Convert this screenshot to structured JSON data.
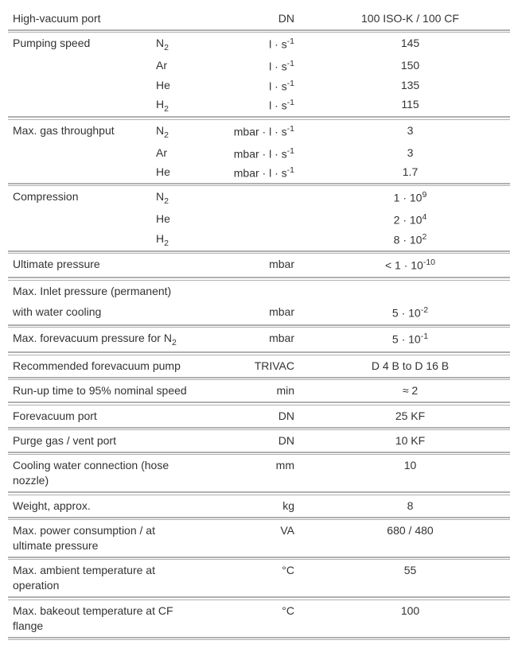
{
  "table": {
    "col_widths": [
      "180px",
      "60px",
      "140px",
      "auto"
    ],
    "font_size": 14,
    "text_color": "#333333",
    "sep_color_top": "#b0b0b0",
    "sep_color_bottom": "#b0b0b0",
    "rows": [
      {
        "c1": "High-vacuum port",
        "c2": "",
        "c3": "DN",
        "c4": "100 ISO-K / 100 CF",
        "sep_before": false
      },
      {
        "c1": "Pumping speed",
        "c2": "N",
        "c2_sub": "2",
        "c3": "l · s",
        "c3_sup": "-1",
        "c4": "145",
        "sep_before": true
      },
      {
        "c1": "",
        "c2": "Ar",
        "c3": "l · s",
        "c3_sup": "-1",
        "c4": "150"
      },
      {
        "c1": "",
        "c2": "He",
        "c3": "l · s",
        "c3_sup": "-1",
        "c4": "135"
      },
      {
        "c1": "",
        "c2": "H",
        "c2_sub": "2",
        "c3": "l · s",
        "c3_sup": "-1",
        "c4": "115"
      },
      {
        "c1": "Max. gas throughput",
        "c2": "N",
        "c2_sub": "2",
        "c3": "mbar · l · s",
        "c3_sup": "-1",
        "c4": "3",
        "sep_before": true
      },
      {
        "c1": "",
        "c2": "Ar",
        "c3": "mbar · l · s",
        "c3_sup": "-1",
        "c4": "3"
      },
      {
        "c1": "",
        "c2": "He",
        "c3": "mbar · l · s",
        "c3_sup": "-1",
        "c4": "1.7"
      },
      {
        "c1": "Compression",
        "c2": "N",
        "c2_sub": "2",
        "c3": "",
        "c4": "1 · 10",
        "c4_sup": "9",
        "sep_before": true
      },
      {
        "c1": "",
        "c2": "He",
        "c3": "",
        "c4": "2 · 10",
        "c4_sup": "4"
      },
      {
        "c1": "",
        "c2": "H",
        "c2_sub": "2",
        "c3": "",
        "c4": "8 · 10",
        "c4_sup": "2"
      },
      {
        "c1": "Ultimate pressure",
        "c2": "",
        "c3": "mbar",
        "c4": "< 1 · 10",
        "c4_sup": "-10",
        "sep_before": true
      },
      {
        "c1": "Max. Inlet pressure (permanent)",
        "c1_colspan": 4,
        "sep_before": true
      },
      {
        "c1": "with water cooling",
        "c2": "",
        "c3": "mbar",
        "c4": "5 · 10",
        "c4_sup": "-2"
      },
      {
        "c1": "Max. forevacuum pressure for N",
        "c1_sub": "2",
        "c1_colspan": 2,
        "c3": "mbar",
        "c4": "5 · 10",
        "c4_sup": "-1",
        "sep_before": true
      },
      {
        "c1": "Recommended forevacuum pump",
        "c1_colspan": 2,
        "c3": "TRIVAC",
        "c4": "D 4 B to D 16 B",
        "sep_before": true
      },
      {
        "c1": "Run-up time to 95% nominal speed",
        "c1_colspan": 2,
        "c3": "min",
        "c4": "≈ 2",
        "sep_before": true
      },
      {
        "c1": "Forevacuum port",
        "c1_colspan": 2,
        "c3": "DN",
        "c4": "25 KF",
        "sep_before": true
      },
      {
        "c1": "Purge gas / vent port",
        "c1_colspan": 2,
        "c3": "DN",
        "c4": "10 KF",
        "sep_before": true
      },
      {
        "c1": "Cooling water connection (hose nozzle)",
        "c1_colspan": 2,
        "c3": "mm",
        "c4": "10",
        "sep_before": true
      },
      {
        "c1": "Weight, approx.",
        "c1_colspan": 2,
        "c3": "kg",
        "c4": "8",
        "sep_before": true
      },
      {
        "c1": "Max. power consumption / at ultimate pressure",
        "c1_colspan": 2,
        "c3": "VA",
        "c4": "680 / 480",
        "sep_before": true
      },
      {
        "c1": "Max. ambient temperature at operation",
        "c1_colspan": 2,
        "c3": "°C",
        "c4": "55",
        "sep_before": true
      },
      {
        "c1": "Max. bakeout temperature at CF flange",
        "c1_colspan": 2,
        "c3": "°C",
        "c4": "100",
        "sep_before": true,
        "sep_after": true
      }
    ]
  }
}
